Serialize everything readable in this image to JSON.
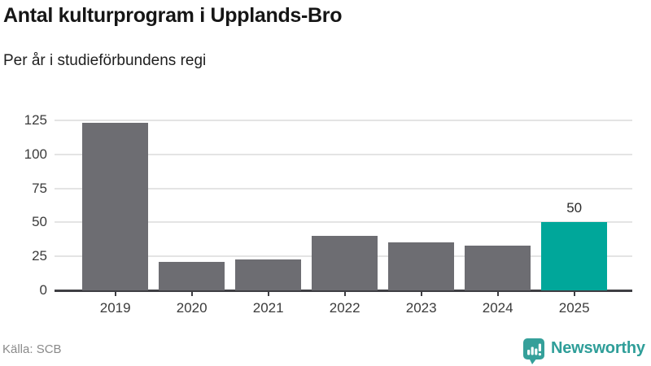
{
  "header": {
    "title": "Antal kulturprogram i Upplands-Bro",
    "subtitle": "Per år i studieförbundens regi"
  },
  "chart_data": {
    "type": "bar",
    "title": "Antal kulturprogram i Upplands-Bro",
    "subtitle": "Per år i studieförbundens regi",
    "categories": [
      "2019",
      "2020",
      "2021",
      "2022",
      "2023",
      "2024",
      "2025"
    ],
    "values": [
      123,
      21,
      23,
      40,
      35,
      33,
      50
    ],
    "xlabel": "",
    "ylabel": "",
    "ylim": [
      0,
      131
    ],
    "yticks": [
      0,
      25,
      50,
      75,
      100,
      125
    ],
    "grid": true,
    "legend": "none",
    "bar_color": "#6d6d72",
    "highlight_index": 6,
    "highlight_color": "#00a79a",
    "annotations": [
      {
        "index": 6,
        "text": "50"
      }
    ]
  },
  "footer": {
    "source": "Källa: SCB",
    "brand": "Newsworthy",
    "brand_color": "#2f9e99",
    "logo_icon": "newsworthy-barchart-pin-icon"
  }
}
